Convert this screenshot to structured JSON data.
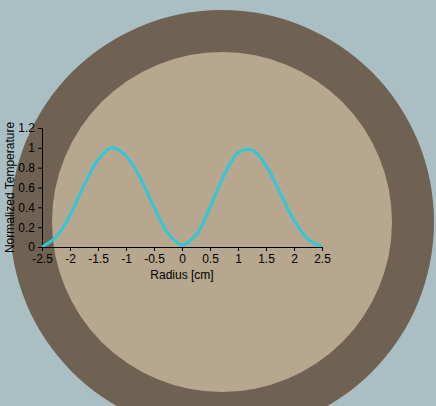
{
  "chart_data": {
    "type": "line",
    "x_label": "Radius [cm]",
    "y_label": "Normalized Temperature",
    "x": [
      -2.5,
      -2.25,
      -2,
      -1.75,
      -1.5,
      -1.25,
      -1,
      -0.75,
      -0.5,
      -0.25,
      0,
      0.25,
      0.5,
      0.75,
      1,
      1.25,
      1.5,
      1.75,
      2,
      2.25,
      2.5
    ],
    "values": [
      0,
      0.1,
      0.32,
      0.62,
      0.88,
      1.0,
      0.92,
      0.7,
      0.4,
      0.14,
      0.02,
      0.12,
      0.4,
      0.72,
      0.95,
      0.98,
      0.82,
      0.55,
      0.27,
      0.08,
      0
    ],
    "color": "#2ec8d8",
    "xlim": [
      -2.5,
      2.5
    ],
    "xticks": [
      -2.5,
      -2,
      -1.5,
      -1,
      -0.5,
      0,
      0.5,
      1,
      1.5,
      2,
      2.5
    ],
    "ylim": [
      0,
      1.2
    ],
    "yticks": [
      0,
      0.2,
      0.4,
      0.6,
      0.8,
      1,
      1.2
    ],
    "grid": false
  }
}
